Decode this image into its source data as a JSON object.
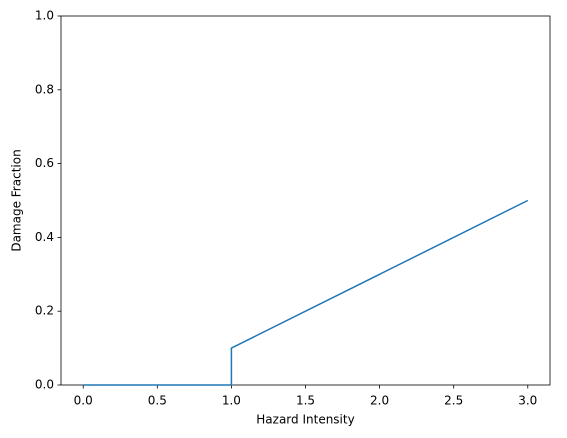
{
  "chart_data": {
    "type": "line",
    "x": [
      0,
      1,
      1,
      3
    ],
    "values": [
      0,
      0,
      0.1,
      0.5
    ],
    "color": "#1f77b4",
    "xlabel": "Hazard Intensity",
    "ylabel": "Damage Fraction",
    "xlim": [
      -0.15,
      3.15
    ],
    "ylim": [
      0,
      1
    ],
    "xticks": [
      {
        "value": 0,
        "label": "0.0"
      },
      {
        "value": 0.5,
        "label": "0.5"
      },
      {
        "value": 1,
        "label": "1.0"
      },
      {
        "value": 1.5,
        "label": "1.5"
      },
      {
        "value": 2,
        "label": "2.0"
      },
      {
        "value": 2.5,
        "label": "2.5"
      },
      {
        "value": 3,
        "label": "3.0"
      }
    ],
    "yticks": [
      {
        "value": 0,
        "label": "0.0"
      },
      {
        "value": 0.2,
        "label": "0.2"
      },
      {
        "value": 0.4,
        "label": "0.4"
      },
      {
        "value": 0.6,
        "label": "0.6"
      },
      {
        "value": 0.8,
        "label": "0.8"
      },
      {
        "value": 1,
        "label": "1.0"
      }
    ],
    "grid": false
  }
}
